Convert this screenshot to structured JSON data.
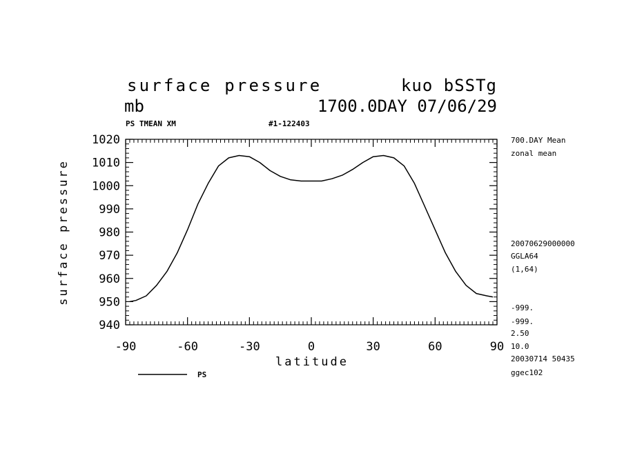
{
  "header": {
    "title_left": "surface pressure",
    "title_right": "kuo bSSTg",
    "units": "mb",
    "time_label": "1700.0DAY 07/06/29",
    "field_label": "PS TMEAN XM",
    "run_id": "#1-122403"
  },
  "right_notes": {
    "mean_label": "700.DAY Mean",
    "avg_label": "zonal mean",
    "timestamp": "20070629000000",
    "grid": "GGLA64",
    "index": "(1,64)",
    "missing1": "-999.",
    "missing2": "-999.",
    "val1": "2.50",
    "val2": "10.0",
    "date_code": "20030714  50435",
    "machine": "ggec102"
  },
  "legend": {
    "label": "PS"
  },
  "chart_data": {
    "type": "line",
    "title": "surface pressure",
    "xlabel": "latitude",
    "ylabel": "surface pressure",
    "xlim": [
      -90,
      90
    ],
    "ylim": [
      940,
      1020
    ],
    "x_ticks": [
      -90,
      -60,
      -30,
      0,
      30,
      60,
      90
    ],
    "y_ticks": [
      940,
      950,
      960,
      970,
      980,
      990,
      1000,
      1010,
      1020
    ],
    "x_tick_labels": [
      "-90",
      "-60",
      "-30",
      "0",
      "30",
      "60",
      "90"
    ],
    "y_tick_labels": [
      "940",
      "950",
      "960",
      "970",
      "980",
      "990",
      "1000",
      "1010",
      "1020"
    ],
    "series": [
      {
        "name": "PS",
        "color": "#000000",
        "x": [
          -88,
          -85,
          -80,
          -75,
          -70,
          -65,
          -60,
          -55,
          -50,
          -45,
          -40,
          -35,
          -30,
          -25,
          -20,
          -15,
          -10,
          -5,
          0,
          5,
          10,
          15,
          20,
          25,
          30,
          35,
          40,
          45,
          50,
          55,
          60,
          65,
          70,
          75,
          80,
          85,
          88
        ],
        "y": [
          950,
          950.5,
          952.5,
          957,
          963,
          971,
          981,
          992,
          1001,
          1008.5,
          1012,
          1013,
          1012.5,
          1010,
          1006.5,
          1004,
          1002.5,
          1002,
          1002,
          1002,
          1003,
          1004.5,
          1007,
          1010,
          1012.5,
          1013,
          1012,
          1008.5,
          1001,
          991,
          981,
          971,
          963,
          957,
          953.5,
          952.5,
          952
        ]
      }
    ]
  }
}
